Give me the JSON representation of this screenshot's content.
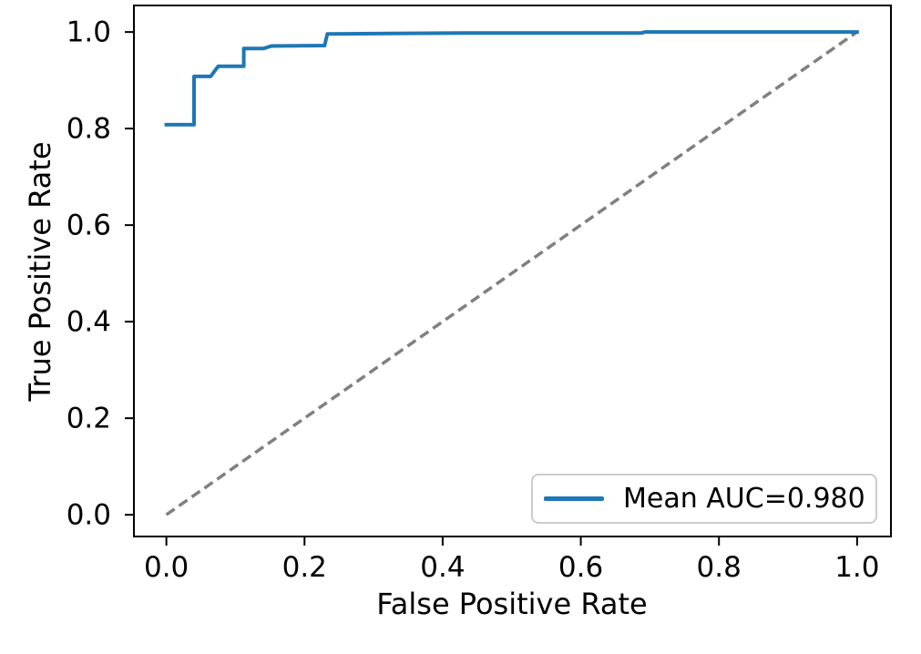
{
  "chart_data": {
    "type": "line",
    "title": "",
    "xlabel": "False Positive Rate",
    "ylabel": "True Positive Rate",
    "xlim": [
      -0.047,
      1.049
    ],
    "ylim": [
      -0.045,
      1.055
    ],
    "xticks": [
      0.0,
      0.2,
      0.4,
      0.6,
      0.8,
      1.0
    ],
    "yticks": [
      0.0,
      0.2,
      0.4,
      0.6,
      0.8,
      1.0
    ],
    "xtick_labels": [
      "0.0",
      "0.2",
      "0.4",
      "0.6",
      "0.8",
      "1.0"
    ],
    "ytick_labels": [
      "0.0",
      "0.2",
      "0.4",
      "0.6",
      "0.8",
      "1.0"
    ],
    "grid": false,
    "axes_color": "#000000",
    "series": [
      {
        "name": "Mean ROC curve",
        "color": "#1f77b4",
        "style": "solid",
        "linewidth": 4,
        "points": [
          [
            0.0,
            0.808
          ],
          [
            0.04,
            0.808
          ],
          [
            0.04,
            0.908
          ],
          [
            0.064,
            0.908
          ],
          [
            0.075,
            0.929
          ],
          [
            0.112,
            0.929
          ],
          [
            0.112,
            0.966
          ],
          [
            0.141,
            0.966
          ],
          [
            0.152,
            0.971
          ],
          [
            0.229,
            0.972
          ],
          [
            0.233,
            0.996
          ],
          [
            0.32,
            0.997
          ],
          [
            0.46,
            0.998
          ],
          [
            0.688,
            0.998
          ],
          [
            0.693,
            1.0
          ],
          [
            1.0,
            1.0
          ]
        ]
      },
      {
        "name": "Chance diagonal",
        "color": "#808080",
        "style": "dashed",
        "linewidth": 3.5,
        "points": [
          [
            0.0,
            0.0
          ],
          [
            1.0,
            1.0
          ]
        ]
      }
    ],
    "legend": {
      "position": "lower-right",
      "border_color": "#cccccc",
      "entries": [
        {
          "label": "Mean AUC=0.980",
          "color": "#1f77b4",
          "style": "solid"
        }
      ]
    }
  }
}
